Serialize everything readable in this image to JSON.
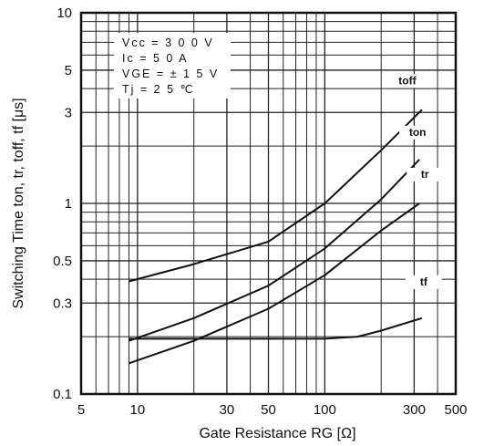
{
  "chart_data": {
    "type": "line",
    "title": "",
    "xlabel": "Gate Resistance RG [Ω]",
    "ylabel": "Switching Time ton, tr, toff, tf [μs]",
    "xscale": "log",
    "yscale": "log",
    "xlim": [
      5,
      500
    ],
    "ylim": [
      0.1,
      10
    ],
    "grid": true,
    "x_ticks": [
      5,
      10,
      30,
      50,
      100,
      300,
      500
    ],
    "x_tick_labels": [
      "5",
      "10",
      "30",
      "50",
      "100",
      "300",
      "500"
    ],
    "y_ticks": [
      0.1,
      0.3,
      0.5,
      1,
      3,
      5,
      10
    ],
    "y_tick_labels": [
      "0.1",
      "0.3",
      "0.5",
      "1",
      "3",
      "5",
      "10"
    ],
    "conditions": [
      "Vcc = 3 0 0 V",
      "Ic = 5 0 A",
      "VGE = ± 1 5 V",
      "Tj = 2 5 ℃"
    ],
    "series": [
      {
        "name": "toff",
        "x": [
          9,
          20,
          50,
          100,
          200,
          330
        ],
        "y": [
          0.39,
          0.48,
          0.63,
          1.0,
          1.9,
          3.1
        ]
      },
      {
        "name": "ton",
        "x": [
          9,
          20,
          50,
          100,
          200,
          320
        ],
        "y": [
          0.19,
          0.25,
          0.37,
          0.58,
          1.05,
          1.7
        ]
      },
      {
        "name": "tr",
        "x": [
          9,
          20,
          50,
          100,
          200,
          320
        ],
        "y": [
          0.145,
          0.19,
          0.28,
          0.42,
          0.72,
          1.0
        ]
      },
      {
        "name": "tf",
        "x": [
          9,
          20,
          50,
          100,
          150,
          200,
          330
        ],
        "y": [
          0.195,
          0.195,
          0.195,
          0.195,
          0.2,
          0.215,
          0.25
        ]
      }
    ]
  }
}
